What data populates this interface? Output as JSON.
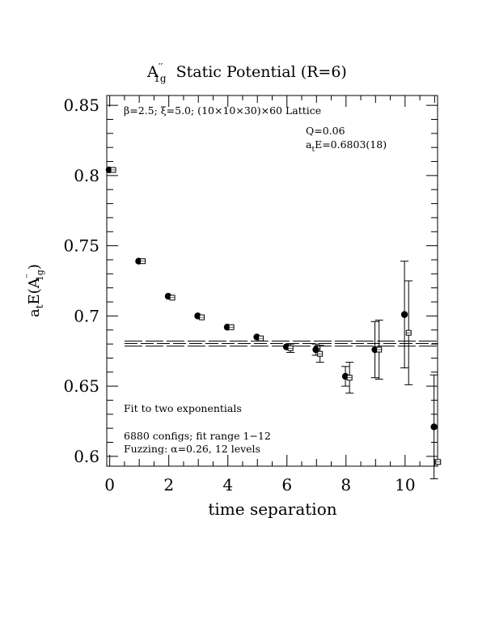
{
  "chart_data": {
    "type": "scatter",
    "title": {
      "main": "A",
      "sup": "′′",
      "sub": "1g",
      "rest": "  Static Potential (R=6)"
    },
    "xlabel": "time separation",
    "ylabel": {
      "main": "a",
      "sub_t": "t",
      "mid": "E(A",
      "sup": "′′",
      "sub": "1g",
      "end": ")"
    },
    "xlim": [
      -0.1,
      11.1
    ],
    "ylim": [
      0.593,
      0.857
    ],
    "xticks": [
      0,
      2,
      4,
      6,
      8,
      10
    ],
    "xtick_labels": [
      "0",
      "2",
      "4",
      "6",
      "8",
      "10"
    ],
    "yticks": [
      0.6,
      0.65,
      0.7,
      0.75,
      0.8,
      0.85
    ],
    "ytick_labels": [
      "0.6",
      "0.65",
      "0.7",
      "0.75",
      "0.8",
      "0.85"
    ],
    "series": [
      {
        "marker": "filled-circle",
        "points": [
          {
            "x": 0,
            "y": 0.804,
            "err": 0.0
          },
          {
            "x": 1,
            "y": 0.739,
            "err": 0.0
          },
          {
            "x": 2,
            "y": 0.714,
            "err": 0.0
          },
          {
            "x": 3,
            "y": 0.7,
            "err": 0.0
          },
          {
            "x": 4,
            "y": 0.692,
            "err": 0.0
          },
          {
            "x": 5,
            "y": 0.685,
            "err": 0.0
          },
          {
            "x": 6,
            "y": 0.678,
            "err": 0.0
          },
          {
            "x": 7,
            "y": 0.676,
            "err": 0.004
          },
          {
            "x": 8,
            "y": 0.657,
            "err": 0.007
          },
          {
            "x": 9,
            "y": 0.676,
            "err": 0.02
          },
          {
            "x": 10,
            "y": 0.701,
            "err": 0.038
          },
          {
            "x": 11,
            "y": 0.621,
            "err": 0.037
          }
        ]
      },
      {
        "marker": "open-square",
        "points": [
          {
            "x": 0,
            "y": 0.804,
            "err": 0.0
          },
          {
            "x": 1,
            "y": 0.739,
            "err": 0.0
          },
          {
            "x": 2,
            "y": 0.713,
            "err": 0.0
          },
          {
            "x": 3,
            "y": 0.699,
            "err": 0.0
          },
          {
            "x": 4,
            "y": 0.692,
            "err": 0.0
          },
          {
            "x": 5,
            "y": 0.684,
            "err": 0.0
          },
          {
            "x": 6,
            "y": 0.677,
            "err": 0.003
          },
          {
            "x": 7,
            "y": 0.673,
            "err": 0.006
          },
          {
            "x": 8,
            "y": 0.656,
            "err": 0.011
          },
          {
            "x": 9,
            "y": 0.676,
            "err": 0.021
          },
          {
            "x": 10,
            "y": 0.688,
            "err": 0.037
          },
          {
            "x": 11,
            "y": 0.596,
            "err": 0.0
          }
        ]
      }
    ],
    "fit": {
      "value": 0.6803,
      "error": 0.0018,
      "x_from": 0.5,
      "x_to": 11.1
    },
    "annotations": {
      "lattice": "β=2.5; ξ=5.0; (10×10×30)×60 Lattice",
      "q_text": "Q=0.06",
      "energy": {
        "a": "a",
        "sub": "t",
        "rest": "E=0.6803(18)"
      },
      "fit_desc": "Fit to two exponentials",
      "configs": "6880 configs; fit range 1−12",
      "fuzzing": "Fuzzing: α=0.26, 12 levels"
    }
  }
}
